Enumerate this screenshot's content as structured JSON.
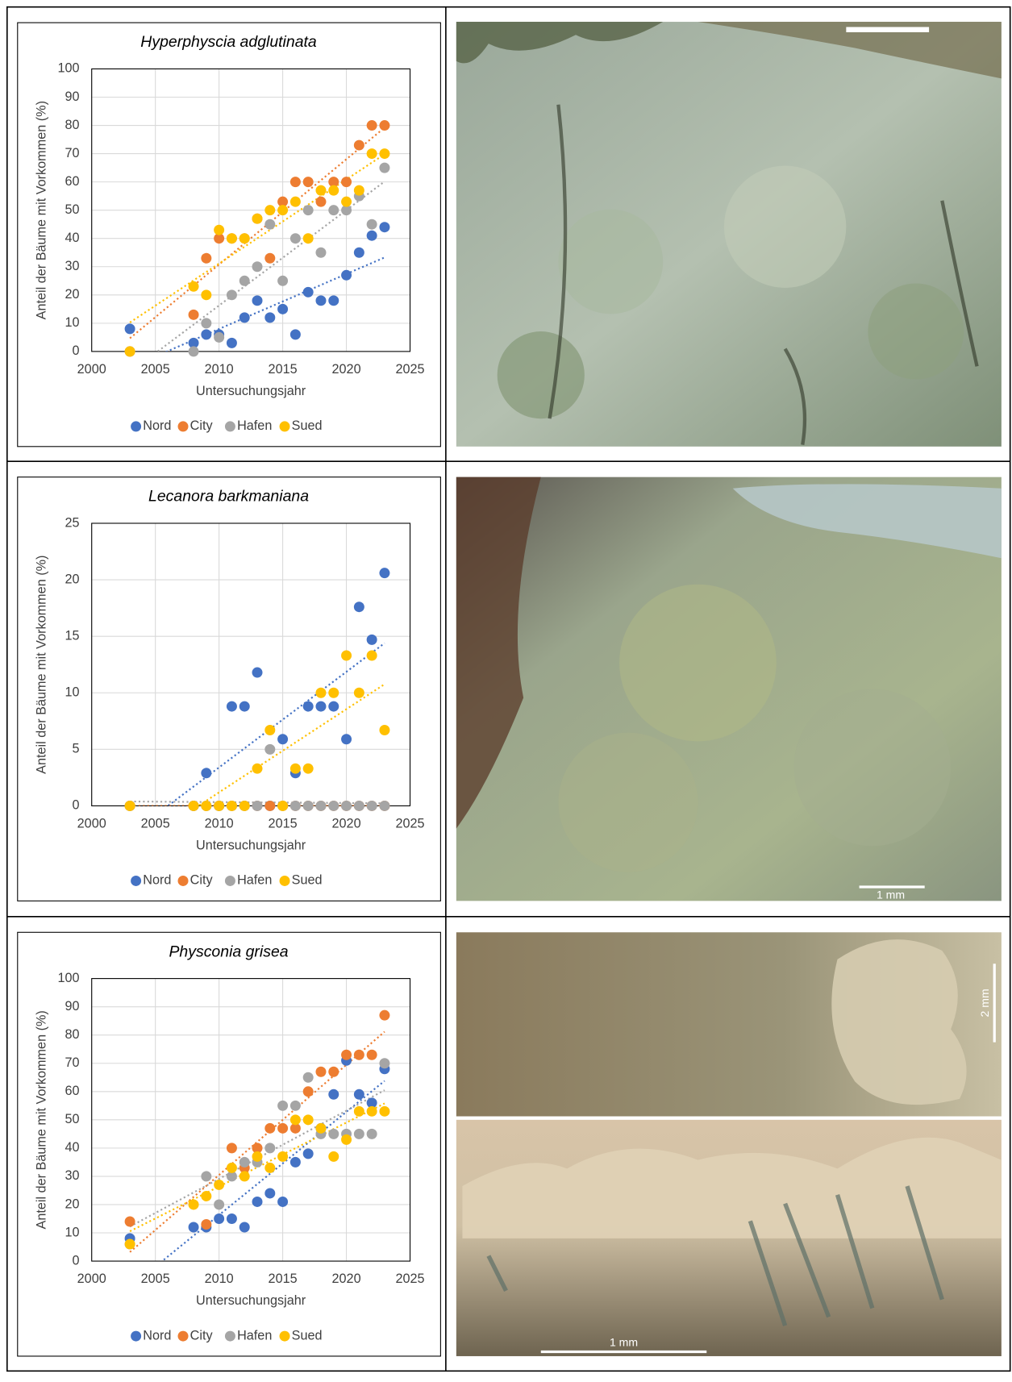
{
  "chart_data": [
    {
      "type": "scatter",
      "title": "Hyperphyscia adglutinata",
      "xlabel": "Untersuchungsjahr",
      "ylabel": "Anteil der Bäume mit Vorkommen (%)",
      "x": [
        2003,
        2008,
        2009,
        2010,
        2011,
        2012,
        2013,
        2014,
        2015,
        2016,
        2017,
        2018,
        2019,
        2020,
        2021,
        2022,
        2023
      ],
      "series": [
        {
          "name": "Nord",
          "color": "#4472c4",
          "values": [
            8,
            3,
            6,
            6,
            3,
            12,
            18,
            12,
            15,
            6,
            21,
            18,
            18,
            27,
            35,
            41,
            44
          ]
        },
        {
          "name": "City",
          "color": "#ed7d31",
          "values": [
            0,
            13,
            33,
            40,
            40,
            40,
            47,
            33,
            53,
            60,
            60,
            53,
            60,
            60,
            73,
            80,
            80
          ]
        },
        {
          "name": "Hafen",
          "color": "#a5a5a5",
          "values": [
            0,
            0,
            10,
            5,
            20,
            25,
            30,
            45,
            25,
            40,
            50,
            35,
            50,
            50,
            55,
            45,
            65
          ]
        },
        {
          "name": "Sued",
          "color": "#ffc000",
          "values": [
            0,
            23,
            20,
            43,
            40,
            40,
            47,
            50,
            50,
            53,
            40,
            57,
            57,
            53,
            57,
            70,
            70
          ]
        }
      ],
      "xlim": [
        2000,
        2025
      ],
      "xticks": [
        2000,
        2005,
        2010,
        2015,
        2020,
        2025
      ],
      "ylim": [
        0,
        100
      ],
      "yticks": [
        0,
        10,
        20,
        30,
        40,
        50,
        60,
        70,
        80,
        90,
        100
      ],
      "grid": true,
      "trendline": true,
      "legend": "bottom"
    },
    {
      "type": "scatter",
      "title": "Lecanora barkmaniana",
      "xlabel": "Untersuchungsjahr",
      "ylabel": "Anteil der Bäume mit Vorkommen (%)",
      "x": [
        2003,
        2008,
        2009,
        2010,
        2011,
        2012,
        2013,
        2014,
        2015,
        2016,
        2017,
        2018,
        2019,
        2020,
        2021,
        2022,
        2023
      ],
      "series": [
        {
          "name": "Nord",
          "color": "#4472c4",
          "values": [
            0,
            0,
            2.9,
            0,
            8.8,
            8.8,
            11.8,
            0,
            5.9,
            2.9,
            8.8,
            8.8,
            8.8,
            5.9,
            17.6,
            14.7,
            20.6
          ]
        },
        {
          "name": "City",
          "color": "#ed7d31",
          "values": [
            0,
            0,
            0,
            0,
            0,
            0,
            0,
            0,
            0,
            0,
            0,
            0,
            0,
            0,
            0,
            0,
            0
          ]
        },
        {
          "name": "Hafen",
          "color": "#a5a5a5",
          "values": [
            0,
            0,
            0,
            0,
            0,
            0,
            0,
            5,
            0,
            0,
            0,
            0,
            0,
            0,
            0,
            0,
            0
          ]
        },
        {
          "name": "Sued",
          "color": "#ffc000",
          "values": [
            0,
            0,
            0,
            0,
            0,
            0,
            3.3,
            6.7,
            0,
            3.3,
            3.3,
            10,
            10,
            13.3,
            10,
            13.3,
            6.7
          ]
        }
      ],
      "xlim": [
        2000,
        2025
      ],
      "xticks": [
        2000,
        2005,
        2010,
        2015,
        2020,
        2025
      ],
      "ylim": [
        0,
        25
      ],
      "yticks": [
        0,
        5,
        10,
        15,
        20,
        25
      ],
      "grid": true,
      "trendline": true,
      "legend": "bottom"
    },
    {
      "type": "scatter",
      "title": "Physconia grisea",
      "xlabel": "Untersuchungsjahr",
      "ylabel": "Anteil der Bäume mit Vorkommen (%)",
      "x": [
        2003,
        2008,
        2009,
        2010,
        2011,
        2012,
        2013,
        2014,
        2015,
        2016,
        2017,
        2018,
        2019,
        2020,
        2021,
        2022,
        2023
      ],
      "series": [
        {
          "name": "Nord",
          "color": "#4472c4",
          "values": [
            8,
            12,
            12,
            15,
            15,
            12,
            21,
            24,
            21,
            35,
            38,
            47,
            59,
            71,
            59,
            56,
            68
          ]
        },
        {
          "name": "City",
          "color": "#ed7d31",
          "values": [
            14,
            null,
            13,
            null,
            40,
            33,
            40,
            47,
            47,
            47,
            60,
            67,
            67,
            73,
            73,
            73,
            87
          ]
        },
        {
          "name": "Hafen",
          "color": "#a5a5a5",
          "values": [
            6,
            null,
            30,
            20,
            30,
            35,
            35,
            40,
            55,
            55,
            65,
            45,
            45,
            45,
            45,
            45,
            70
          ]
        },
        {
          "name": "Sued",
          "color": "#ffc000",
          "values": [
            6,
            20,
            23,
            27,
            33,
            30,
            37,
            33,
            37,
            50,
            50,
            47,
            37,
            43,
            53,
            53,
            53
          ]
        }
      ],
      "xlim": [
        2000,
        2025
      ],
      "xticks": [
        2000,
        2005,
        2010,
        2015,
        2020,
        2025
      ],
      "ylim": [
        0,
        100
      ],
      "yticks": [
        0,
        10,
        20,
        30,
        40,
        50,
        60,
        70,
        80,
        90,
        100
      ],
      "grid": true,
      "trendline": true,
      "legend": "bottom"
    }
  ],
  "photos": [
    {
      "scale_label": "1 mm"
    },
    {
      "scale_label": "2 mm"
    },
    {
      "scale_label": "1 mm"
    }
  ]
}
